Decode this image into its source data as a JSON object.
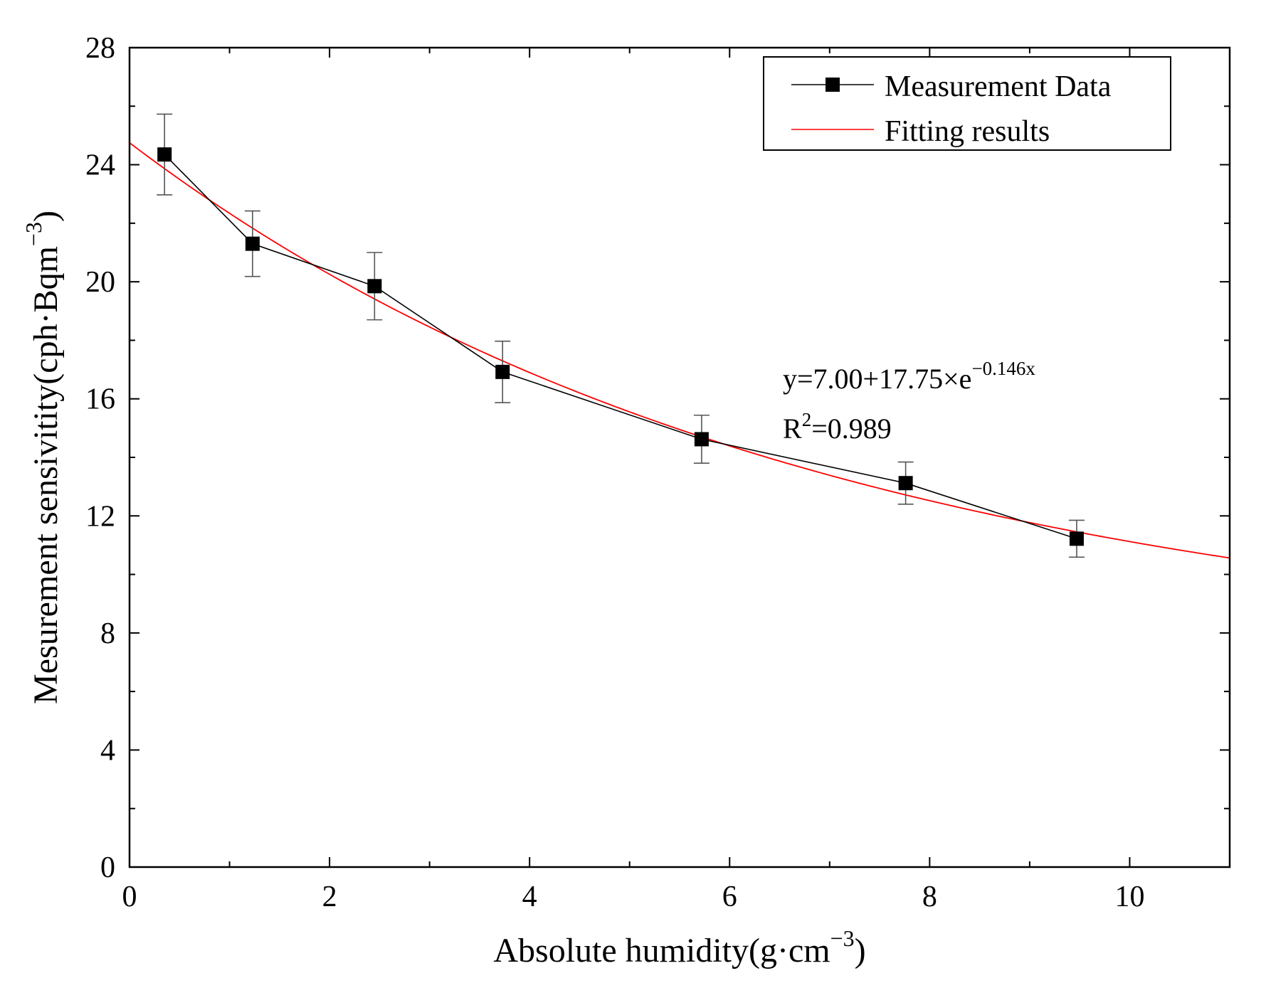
{
  "chart_data": {
    "type": "line",
    "title": "",
    "xlabel": "Absolute humidity(g·cm",
    "xlabel_sup": "−3",
    "xlabel_close": ")",
    "ylabel": "Mesurement sensivitity(cph·Bqm",
    "ylabel_sup": "−3",
    "ylabel_close": ")",
    "xlim": [
      0,
      11
    ],
    "ylim": [
      0,
      28
    ],
    "x_ticks": [
      0,
      2,
      4,
      6,
      8,
      10
    ],
    "x_tick_labels": [
      "0",
      "2",
      "4",
      "6",
      "8",
      "10"
    ],
    "y_ticks": [
      0,
      4,
      8,
      12,
      16,
      20,
      24,
      28
    ],
    "y_tick_labels": [
      "0",
      "4",
      "8",
      "12",
      "16",
      "20",
      "24",
      "28"
    ],
    "x_minor_step": 1,
    "y_minor_step": 2,
    "legend_position": "top-right",
    "series": [
      {
        "name": "Measurement Data",
        "style": "line-with-square-markers",
        "color": "#000000",
        "x": [
          0.35,
          1.23,
          2.45,
          3.73,
          5.72,
          7.76,
          9.47
        ],
        "y": [
          24.35,
          21.3,
          19.85,
          16.92,
          14.62,
          13.12,
          11.22
        ],
        "error": [
          1.38,
          1.12,
          1.15,
          1.05,
          0.82,
          0.72,
          0.63
        ]
      },
      {
        "name": "Fitting results",
        "style": "line",
        "color": "#ff0000",
        "function": "exp_decay",
        "params": {
          "y0": 7.0,
          "A": 17.75,
          "k": 0.146
        },
        "x_range": [
          0,
          11
        ]
      }
    ],
    "annotation": {
      "equation_lhs": "y=7.00+17.75×e",
      "equation_exp": "−0.146x",
      "r2_label": "R",
      "r2_sup": "2",
      "r2_value": "=0.989"
    }
  }
}
